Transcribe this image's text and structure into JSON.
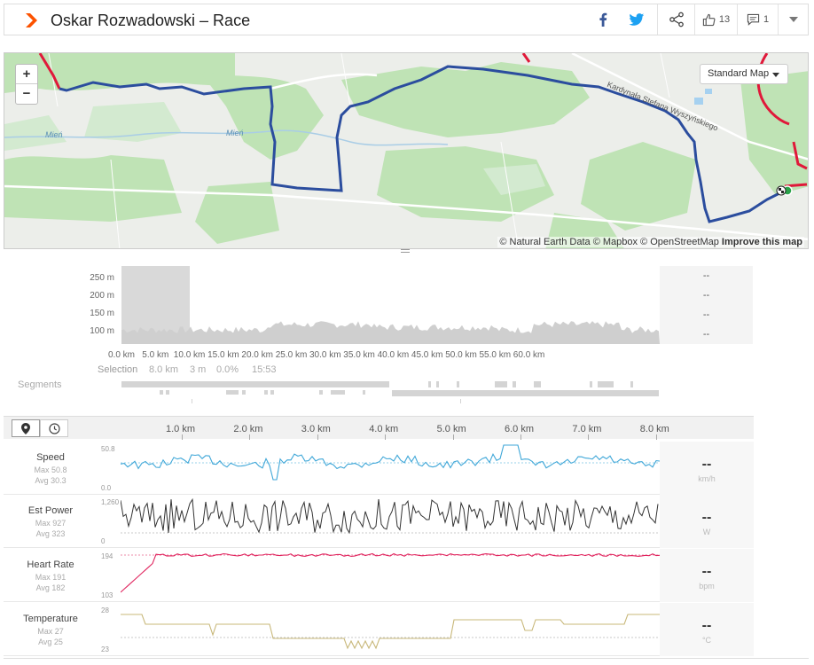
{
  "header": {
    "title": "Oskar Rozwadowski – Race",
    "kudos_count": "13",
    "comment_count": "1",
    "icons": [
      "facebook-icon",
      "twitter-icon",
      "share-icon",
      "thumbs-up-icon",
      "comment-icon",
      "chevron-down-icon"
    ]
  },
  "map": {
    "zoom_in": "+",
    "zoom_out": "−",
    "map_type": "Standard Map",
    "attribution": "© Natural Earth Data © Mapbox © OpenStreetMap",
    "improve": "Improve this map",
    "river_label_1": "Mień",
    "river_label_2": "Mień",
    "street_label": "Kardynała Stefana Wyszyńskiego",
    "colors": {
      "route": "#2b4d9e",
      "segment": "#e0193a",
      "forest": "#b9e0b0",
      "road": "#ffffff"
    }
  },
  "elevation": {
    "y_ticks": [
      "250 m",
      "200 m",
      "150 m",
      "100 m"
    ],
    "x_ticks": [
      "0.0 km",
      "5.0 km",
      "10.0 km",
      "15.0 km",
      "20.0 km",
      "25.0 km",
      "30.0 km",
      "35.0 km",
      "40.0 km",
      "45.0 km",
      "50.0 km",
      "55.0 km",
      "60.0 km"
    ],
    "side_values": [
      "--",
      "--",
      "--",
      "--"
    ],
    "selection_label": "Selection",
    "selection_distance": "8.0 km",
    "selection_elev": "3 m",
    "selection_grade": "0.0%",
    "selection_time": "15:53",
    "segments_label": "Segments"
  },
  "streams": {
    "toolbar": {
      "distance_icon": "map-pin-icon",
      "time_icon": "clock-icon"
    },
    "x_ticks": [
      "1.0 km",
      "2.0 km",
      "3.0 km",
      "4.0 km",
      "5.0 km",
      "6.0 km",
      "7.0 km",
      "8.0 km"
    ],
    "rows": [
      {
        "name": "Speed",
        "max": "Max 50.8",
        "avg": "Avg 30.3",
        "axis_max": "50.8",
        "axis_min": "0.0",
        "value": "--",
        "unit": "km/h",
        "color": "#3fa7d8"
      },
      {
        "name": "Est Power",
        "max": "Max 927",
        "avg": "Avg 323",
        "axis_max": "1,260",
        "axis_min": "0",
        "value": "--",
        "unit": "W",
        "color": "#333333"
      },
      {
        "name": "Heart Rate",
        "max": "Max 191",
        "avg": "Avg 182",
        "axis_max": "194",
        "axis_min": "103",
        "value": "--",
        "unit": "bpm",
        "color": "#e0245e"
      },
      {
        "name": "Temperature",
        "max": "Max 27",
        "avg": "Avg 25",
        "axis_max": "28",
        "axis_min": "23",
        "value": "--",
        "unit": "°C",
        "color": "#c8b87a"
      }
    ]
  }
}
